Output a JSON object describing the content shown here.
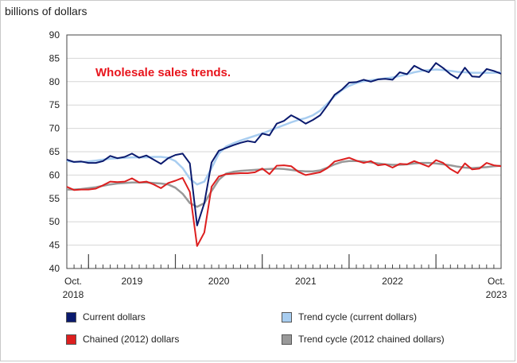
{
  "chart_data": {
    "type": "line",
    "ylabel": "billions of dollars",
    "annotation": "Wholesale sales trends.",
    "ylim": [
      40,
      90
    ],
    "yticks": [
      40,
      45,
      50,
      55,
      60,
      65,
      70,
      75,
      80,
      85,
      90
    ],
    "x_start": "2018-10",
    "x_end": "2023-10",
    "x_labels": [
      {
        "text": "Oct.",
        "sub": "2018",
        "month_index": 0,
        "align": "start"
      },
      {
        "text": "2019",
        "sub": "",
        "month_index": 9,
        "align": "mid"
      },
      {
        "text": "2020",
        "sub": "",
        "month_index": 21,
        "align": "mid"
      },
      {
        "text": "2021",
        "sub": "",
        "month_index": 33,
        "align": "mid"
      },
      {
        "text": "2022",
        "sub": "",
        "month_index": 45,
        "align": "mid"
      },
      {
        "text": "Oct.",
        "sub": "2023",
        "month_index": 60,
        "align": "end"
      }
    ],
    "year_boundaries": [
      3,
      15,
      27,
      39,
      51
    ],
    "grid": "horizontal",
    "legend_position": "bottom",
    "series": [
      {
        "name": "Current dollars",
        "color": "#0a1a6e",
        "width": 2,
        "values": [
          63.3,
          62.8,
          62.9,
          62.6,
          62.6,
          63.0,
          64.1,
          63.6,
          63.9,
          64.6,
          63.7,
          64.2,
          63.3,
          62.4,
          63.6,
          64.3,
          64.6,
          62.5,
          49.2,
          54.0,
          62.7,
          65.2,
          65.8,
          66.4,
          66.9,
          67.3,
          67.0,
          68.9,
          68.5,
          71.0,
          71.6,
          72.8,
          72.0,
          71.0,
          71.8,
          72.8,
          74.9,
          77.2,
          78.3,
          79.8,
          79.9,
          80.4,
          80.0,
          80.5,
          80.6,
          80.4,
          82.0,
          81.6,
          83.4,
          82.6,
          82.0,
          84.0,
          82.9,
          81.6,
          80.7,
          83.0,
          81.1,
          81.0,
          82.7,
          82.3,
          81.7
        ]
      },
      {
        "name": "Trend cycle (current dollars)",
        "color": "#a8cdf0",
        "width": 2.5,
        "values": [
          63.0,
          62.8,
          62.8,
          62.9,
          63.1,
          63.3,
          63.5,
          63.6,
          63.7,
          63.8,
          63.8,
          63.8,
          63.9,
          63.9,
          63.7,
          63.0,
          61.5,
          59.2,
          58.0,
          58.6,
          61.5,
          64.6,
          66.1,
          66.8,
          67.4,
          67.9,
          68.4,
          68.9,
          69.5,
          70.1,
          70.7,
          71.3,
          71.8,
          72.2,
          72.8,
          73.8,
          75.3,
          76.9,
          78.2,
          79.1,
          79.7,
          80.1,
          80.3,
          80.5,
          80.7,
          80.9,
          81.2,
          81.6,
          82.0,
          82.3,
          82.5,
          82.6,
          82.5,
          82.3,
          82.1,
          82.0,
          81.9,
          81.9,
          81.9,
          81.9,
          82.0
        ]
      },
      {
        "name": "Chained (2012) dollars",
        "color": "#dd1f1f",
        "width": 2,
        "values": [
          57.5,
          56.8,
          56.9,
          56.9,
          57.1,
          57.8,
          58.6,
          58.5,
          58.6,
          59.3,
          58.4,
          58.6,
          58.0,
          57.2,
          58.3,
          58.8,
          59.4,
          56.4,
          44.8,
          47.7,
          57.5,
          59.7,
          60.2,
          60.3,
          60.4,
          60.4,
          60.6,
          61.4,
          60.2,
          62.0,
          62.1,
          61.9,
          60.7,
          60.0,
          60.3,
          60.6,
          61.5,
          62.9,
          63.3,
          63.7,
          63.1,
          62.6,
          63.0,
          62.1,
          62.3,
          61.6,
          62.4,
          62.3,
          63.0,
          62.4,
          61.8,
          63.2,
          62.6,
          61.3,
          60.4,
          62.5,
          61.2,
          61.4,
          62.6,
          62.1,
          61.9
        ]
      },
      {
        "name": "Trend cycle (2012 chained dollars)",
        "color": "#999999",
        "width": 2.5,
        "values": [
          56.9,
          56.9,
          57.0,
          57.2,
          57.4,
          57.7,
          58.0,
          58.2,
          58.3,
          58.4,
          58.4,
          58.4,
          58.3,
          58.2,
          58.0,
          57.3,
          56.0,
          54.0,
          53.2,
          54.0,
          56.6,
          59.0,
          60.3,
          60.7,
          60.9,
          61.0,
          61.1,
          61.2,
          61.3,
          61.4,
          61.3,
          61.1,
          60.9,
          60.8,
          60.8,
          61.0,
          61.6,
          62.3,
          62.8,
          63.0,
          63.0,
          62.9,
          62.7,
          62.5,
          62.3,
          62.2,
          62.2,
          62.3,
          62.5,
          62.6,
          62.6,
          62.5,
          62.3,
          62.1,
          61.8,
          61.6,
          61.5,
          61.6,
          61.7,
          61.9,
          62.0
        ]
      }
    ]
  }
}
